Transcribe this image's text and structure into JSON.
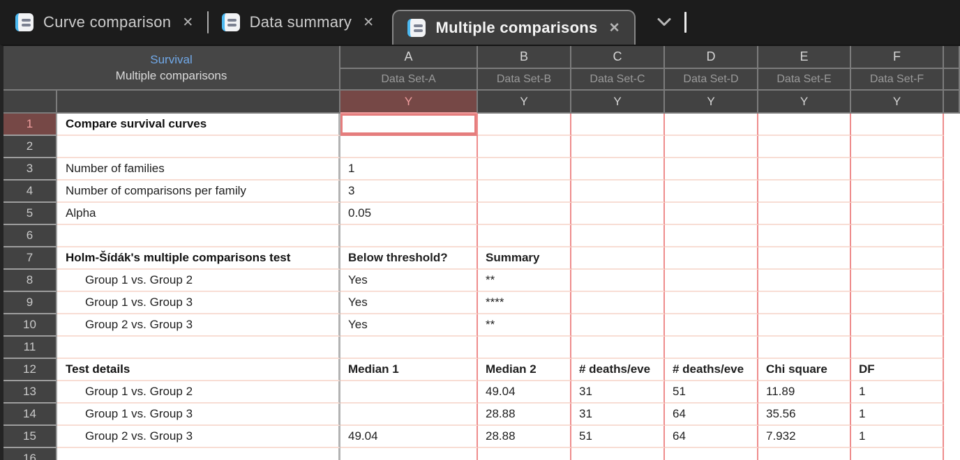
{
  "tab_bar": {
    "tabs": [
      {
        "id": "curve-comparison",
        "label": "Curve comparison"
      },
      {
        "id": "data-summary",
        "label": "Data summary"
      },
      {
        "id": "multiple-comparisons",
        "label": "Multiple comparisons",
        "active": true
      }
    ],
    "close_glyph": "✕"
  },
  "sheet_header": {
    "title_line1": "Survival",
    "title_line2": "Multiple comparisons",
    "columns": [
      {
        "letter": "A",
        "dataset": "Data Set-A",
        "sub": "Y",
        "selected": true
      },
      {
        "letter": "B",
        "dataset": "Data Set-B",
        "sub": "Y"
      },
      {
        "letter": "C",
        "dataset": "Data Set-C",
        "sub": "Y"
      },
      {
        "letter": "D",
        "dataset": "Data Set-D",
        "sub": "Y"
      },
      {
        "letter": "E",
        "dataset": "Data Set-E",
        "sub": "Y"
      },
      {
        "letter": "F",
        "dataset": "Data Set-F",
        "sub": "Y"
      }
    ]
  },
  "grid": {
    "rows": [
      {
        "num": "1",
        "label": "Compare survival curves",
        "bold": true,
        "selected_cell": "A",
        "cells": [
          "",
          "",
          "",
          "",
          "",
          ""
        ]
      },
      {
        "num": "2",
        "label": "",
        "cells": [
          "",
          "",
          "",
          "",
          "",
          ""
        ]
      },
      {
        "num": "3",
        "label": "Number of families",
        "cells": [
          "1",
          "",
          "",
          "",
          "",
          ""
        ]
      },
      {
        "num": "4",
        "label": "Number of comparisons per family",
        "cells": [
          "3",
          "",
          "",
          "",
          "",
          ""
        ]
      },
      {
        "num": "5",
        "label": "Alpha",
        "cells": [
          "0.05",
          "",
          "",
          "",
          "",
          ""
        ]
      },
      {
        "num": "6",
        "label": "",
        "cells": [
          "",
          "",
          "",
          "",
          "",
          ""
        ]
      },
      {
        "num": "7",
        "label": "Holm-Šídák's multiple comparisons test",
        "bold": true,
        "cells_bold": true,
        "cells": [
          "Below threshold?",
          "Summary",
          "",
          "",
          "",
          ""
        ]
      },
      {
        "num": "8",
        "label": "Group 1 vs. Group 2",
        "indent": true,
        "cells": [
          "Yes",
          "**",
          "",
          "",
          "",
          ""
        ]
      },
      {
        "num": "9",
        "label": "Group 1 vs. Group 3",
        "indent": true,
        "cells": [
          "Yes",
          "****",
          "",
          "",
          "",
          ""
        ]
      },
      {
        "num": "10",
        "label": "Group 2 vs. Group 3",
        "indent": true,
        "cells": [
          "Yes",
          "**",
          "",
          "",
          "",
          ""
        ]
      },
      {
        "num": "11",
        "label": "",
        "cells": [
          "",
          "",
          "",
          "",
          "",
          ""
        ]
      },
      {
        "num": "12",
        "label": "Test details",
        "bold": true,
        "cells_bold": true,
        "cells": [
          "Median 1",
          "Median 2",
          "# deaths/eve",
          "# deaths/eve",
          "Chi square",
          "DF"
        ]
      },
      {
        "num": "13",
        "label": "Group 1 vs. Group 2",
        "indent": true,
        "cells": [
          "",
          "49.04",
          "31",
          "51",
          "11.89",
          "1"
        ]
      },
      {
        "num": "14",
        "label": "Group 1 vs. Group 3",
        "indent": true,
        "cells": [
          "",
          "28.88",
          "31",
          "64",
          "35.56",
          "1"
        ]
      },
      {
        "num": "15",
        "label": "Group 2 vs. Group 3",
        "indent": true,
        "cells": [
          "49.04",
          "28.88",
          "51",
          "64",
          "7.932",
          "1"
        ]
      },
      {
        "num": "16",
        "label": "",
        "cells": [
          "",
          "",
          "",
          "",
          "",
          ""
        ]
      }
    ]
  },
  "colors": {
    "selection_header_bg": "#764846",
    "selection_header_text": "#ef9d9d",
    "selected_cell_border": "#e57d7d",
    "grid_vertical_line": "#ee8c8c",
    "grid_horizontal_line": "#f8ddd4",
    "header_title_blue": "#71a9e9",
    "tab_icon_accent": "#4cb9f1"
  }
}
